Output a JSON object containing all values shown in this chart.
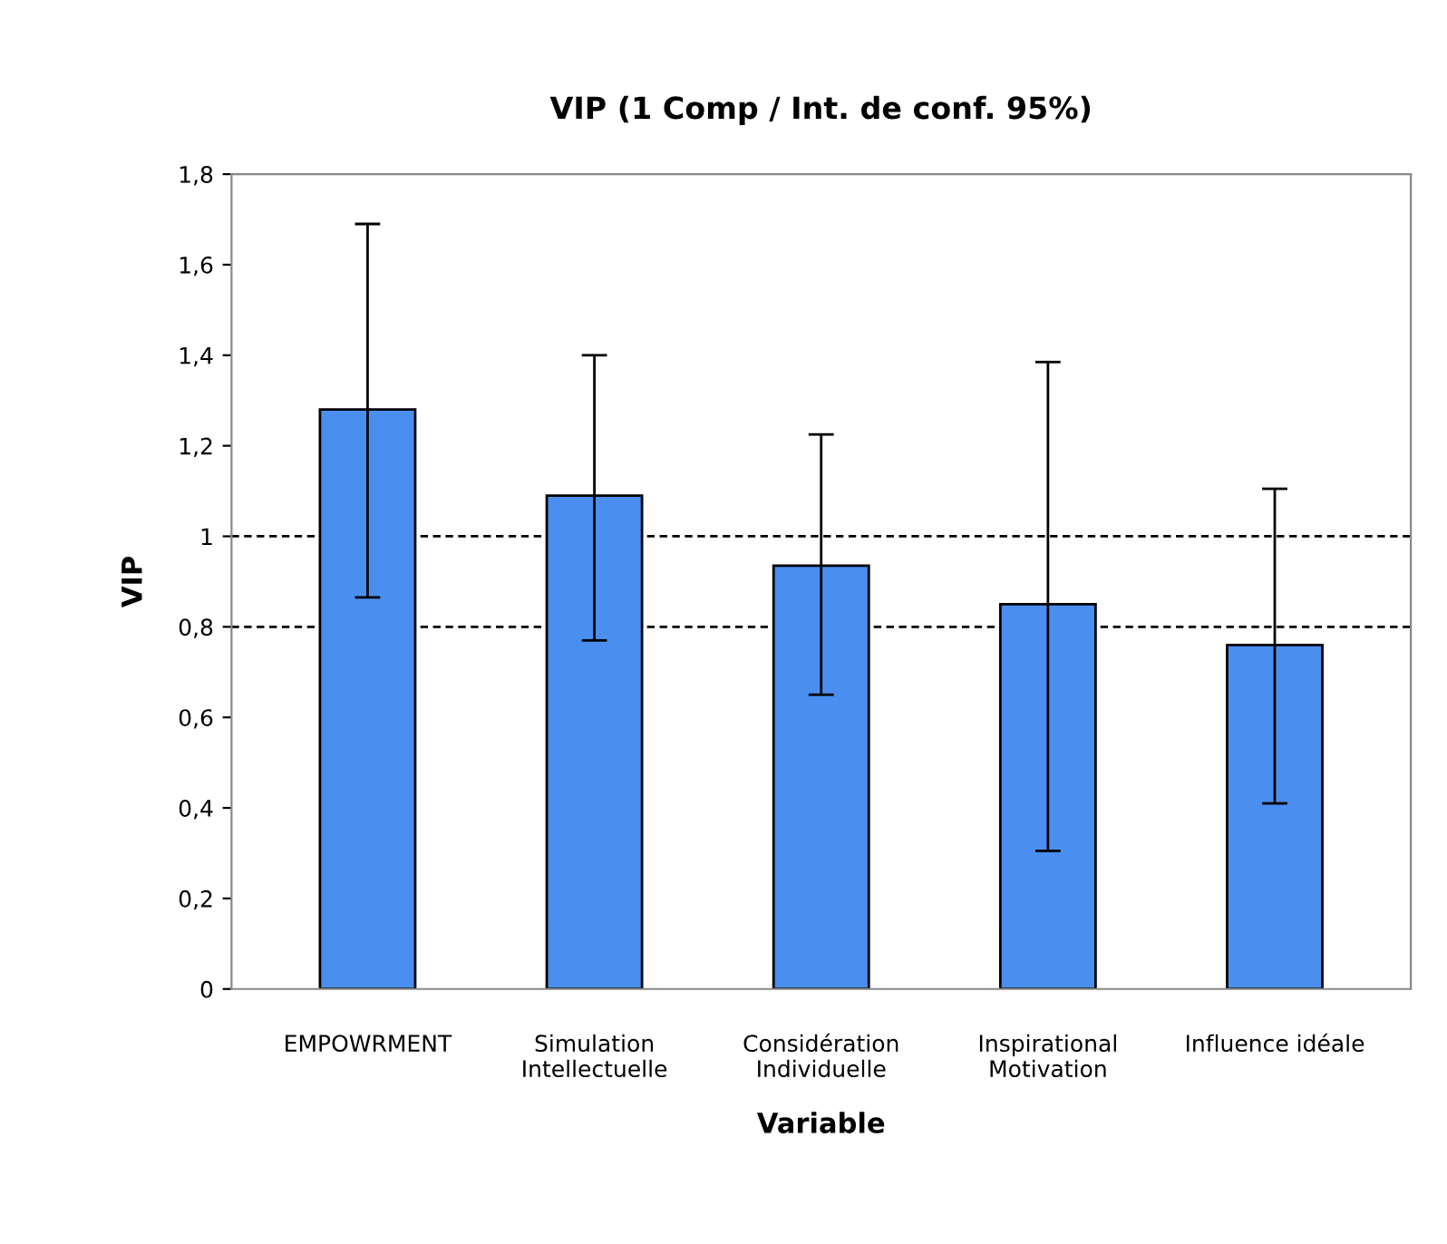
{
  "chart_data": {
    "type": "bar",
    "title": "VIP (1 Comp / Int. de conf. 95%)",
    "xlabel": "Variable",
    "ylabel": "VIP",
    "categories": [
      "EMPOWRMENT",
      "Simulation\nIntellectuelle",
      "Considération\nIndividuelle",
      "Inspirational\nMotivation",
      "Influence idéale"
    ],
    "values": [
      1.28,
      1.09,
      0.935,
      0.85,
      0.76
    ],
    "color": "#4a8ff0",
    "errors": [
      [
        0.865,
        1.69
      ],
      [
        0.77,
        1.4
      ],
      [
        0.65,
        1.225
      ],
      [
        0.305,
        1.385
      ],
      [
        0.41,
        1.105
      ]
    ],
    "ylim": [
      0,
      1.8
    ],
    "yticks": [
      0,
      {
        "value": 0.2,
        "label": "0,2"
      },
      {
        "value": 0.4,
        "label": "0,4"
      },
      {
        "value": 0.6,
        "label": "0,6"
      },
      {
        "value": 0.8,
        "label": "0,8"
      },
      1,
      {
        "value": 1.2,
        "label": "1,2"
      },
      {
        "value": 1.4,
        "label": "1,4"
      },
      {
        "value": 1.6,
        "label": "1,6"
      },
      {
        "value": 1.8,
        "label": "1,8"
      }
    ],
    "ref_lines": [
      {
        "axis": "y",
        "value": 1,
        "color": "#000000",
        "line_style": "dashed"
      },
      {
        "axis": "y",
        "value": 0.8,
        "color": "#000000",
        "line_style": "dashed"
      }
    ],
    "grid": false
  }
}
